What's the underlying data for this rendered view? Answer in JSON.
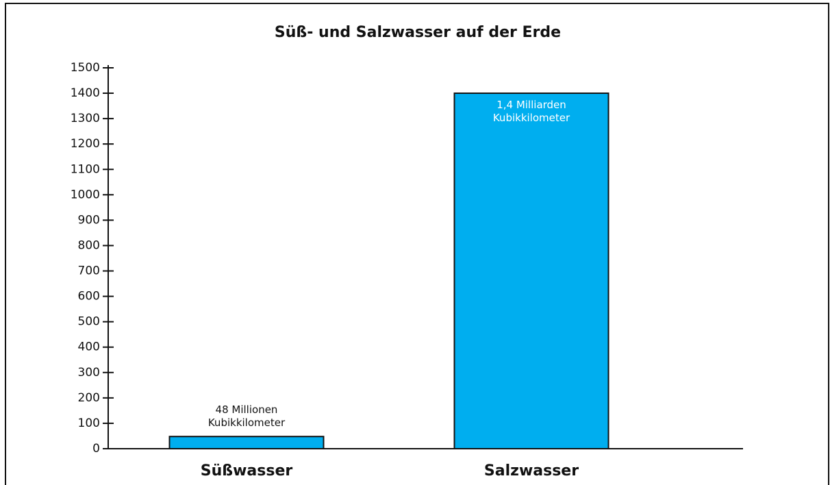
{
  "chart_data": {
    "type": "bar",
    "title": "Süß- und Salzwasser auf der Erde",
    "categories": [
      "Süßwasser",
      "Salzwasser"
    ],
    "values": [
      48,
      1400
    ],
    "value_labels": [
      "48 Millionen Kubikkilometer",
      "1,4 Milliarden Kubikkilometer"
    ],
    "color": "#00aeef",
    "ylim": [
      0,
      1500
    ],
    "yticks": [
      0,
      100,
      200,
      300,
      400,
      500,
      600,
      700,
      800,
      900,
      1000,
      1100,
      1200,
      1300,
      1400,
      1500
    ],
    "grid": false
  }
}
